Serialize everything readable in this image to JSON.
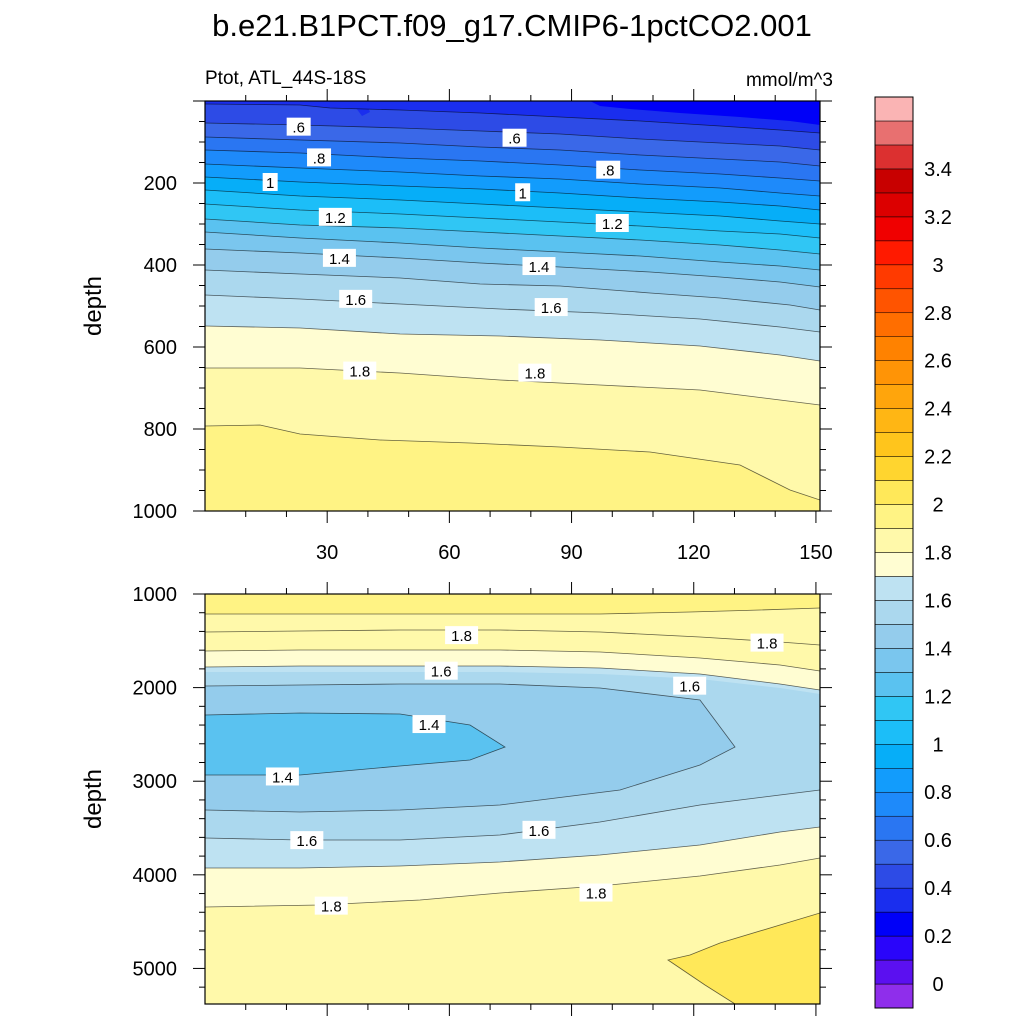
{
  "chart_data": {
    "type": "contour",
    "title": "b.e21.B1PCT.f09_g17.CMIP6-1pctCO2.001",
    "variable_label": "Ptot, ATL_44S-18S",
    "units_label": "mmol/m^3",
    "panels": [
      {
        "id": "upper",
        "ylabel": "depth",
        "xlim": [
          0,
          151
        ],
        "ylim": [
          1000,
          0
        ],
        "x_ticks": [
          30,
          60,
          90,
          120,
          150
        ],
        "x_tick_labels": [
          "30",
          "60",
          "90",
          "120",
          "150"
        ],
        "y_ticks": [
          200,
          400,
          600,
          800,
          1000
        ],
        "y_tick_labels": [
          "200",
          "400",
          "600",
          "800",
          "1000"
        ],
        "contour_labels": [
          {
            "text": ".6",
            "x": 23,
            "depth": 65
          },
          {
            "text": ".6",
            "x": 76,
            "depth": 92
          },
          {
            "text": ".8",
            "x": 28,
            "depth": 140
          },
          {
            "text": ".8",
            "x": 99,
            "depth": 170
          },
          {
            "text": "1",
            "x": 16,
            "depth": 200
          },
          {
            "text": "1",
            "x": 78,
            "depth": 225
          },
          {
            "text": "1.2",
            "x": 32,
            "depth": 285
          },
          {
            "text": "1.2",
            "x": 100,
            "depth": 300
          },
          {
            "text": "1.4",
            "x": 33,
            "depth": 385
          },
          {
            "text": "1.4",
            "x": 82,
            "depth": 405
          },
          {
            "text": "1.6",
            "x": 37,
            "depth": 485
          },
          {
            "text": "1.6",
            "x": 85,
            "depth": 505
          },
          {
            "text": "1.8",
            "x": 38,
            "depth": 660
          },
          {
            "text": "1.8",
            "x": 81,
            "depth": 665
          }
        ]
      },
      {
        "id": "lower",
        "ylabel": "depth",
        "xlim": [
          0,
          151
        ],
        "ylim": [
          5380,
          1000
        ],
        "x_ticks": [
          30,
          60,
          90,
          120,
          150
        ],
        "x_tick_labels": [
          "",
          "",
          "",
          "",
          ""
        ],
        "y_ticks": [
          1000,
          2000,
          3000,
          4000,
          5000
        ],
        "y_tick_labels": [
          "1000",
          "2000",
          "3000",
          "4000",
          "5000"
        ],
        "contour_labels": [
          {
            "text": "1.8",
            "x": 63,
            "depth": 1450
          },
          {
            "text": "1.8",
            "x": 138,
            "depth": 1530
          },
          {
            "text": "1.6",
            "x": 58,
            "depth": 1830
          },
          {
            "text": "1.6",
            "x": 119,
            "depth": 1990
          },
          {
            "text": "1.4",
            "x": 55,
            "depth": 2400
          },
          {
            "text": "1.4",
            "x": 19,
            "depth": 2960
          },
          {
            "text": "1.6",
            "x": 82,
            "depth": 3530
          },
          {
            "text": "1.6",
            "x": 25,
            "depth": 3640
          },
          {
            "text": "1.8",
            "x": 96,
            "depth": 4200
          },
          {
            "text": "1.8",
            "x": 31,
            "depth": 4340
          }
        ]
      }
    ],
    "colorbar": {
      "label_values": [
        "0",
        "0.2",
        "0.4",
        "0.6",
        "0.8",
        "1",
        "1.2",
        "1.4",
        "1.6",
        "1.8",
        "2",
        "2.2",
        "2.4",
        "2.6",
        "2.8",
        "3",
        "3.2",
        "3.4"
      ],
      "colors": [
        "#8F2EEB",
        "#5B10F0",
        "#2A05FA",
        "#0000F8",
        "#1A2EEE",
        "#2D4BE6",
        "#3A68E8",
        "#2A76F2",
        "#1E8AFA",
        "#129CFC",
        "#06AEF8",
        "#1CBEF8",
        "#30C6F4",
        "#5AC2F0",
        "#7AC6EE",
        "#94CCEC",
        "#ABD8EE",
        "#BEE2F2",
        "#FFFDD2",
        "#FFF9AA",
        "#FFF384",
        "#FFE859",
        "#FFD52F",
        "#FFC51C",
        "#FFB614",
        "#FFA50C",
        "#FF9406",
        "#FF8200",
        "#FF6E00",
        "#FF5400",
        "#FF3A00",
        "#FF1A00",
        "#F00000",
        "#DC0000",
        "#C80000",
        "#DC3030",
        "#E87070",
        "#FAB4B4"
      ]
    }
  }
}
